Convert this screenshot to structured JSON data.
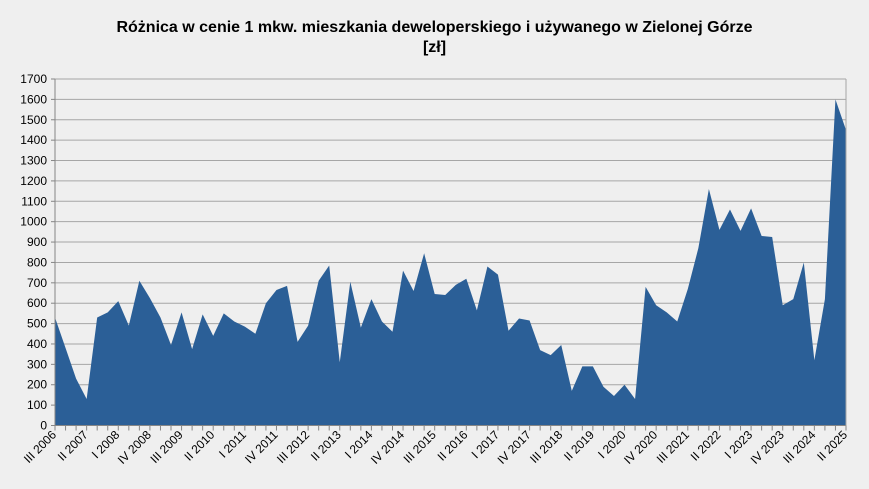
{
  "chart_data": {
    "type": "area",
    "title": "Różnica w cenie 1 mkw. mieszkania deweloperskiego i używanego w Zielonej Górze",
    "subtitle": "[zł]",
    "xlabel": "",
    "ylabel": "",
    "ylim": [
      0,
      1700
    ],
    "yticks": [
      0,
      100,
      200,
      300,
      400,
      500,
      600,
      700,
      800,
      900,
      1000,
      1100,
      1200,
      1300,
      1400,
      1500,
      1600,
      1700
    ],
    "grid": true,
    "legend": null,
    "fill_color": "#2b5f97",
    "x": [
      "III 2006",
      "IV 2006",
      "I 2007",
      "II 2007",
      "III 2007",
      "IV 2007",
      "I 2008",
      "II 2008",
      "III 2008",
      "IV 2008",
      "I 2009",
      "II 2009",
      "III 2009",
      "IV 2009",
      "I 2010",
      "II 2010",
      "III 2010",
      "IV 2010",
      "I 2011",
      "II 2011",
      "III 2011",
      "IV 2011",
      "I 2012",
      "II 2012",
      "III 2012",
      "IV 2012",
      "I 2013",
      "II 2013",
      "III 2013",
      "IV 2013",
      "I 2014",
      "II 2014",
      "III 2014",
      "IV 2014",
      "I 2015",
      "II 2015",
      "III 2015",
      "IV 2015",
      "I 2016",
      "II 2016",
      "III 2016",
      "IV 2016",
      "I 2017",
      "II 2017",
      "III 2017",
      "IV 2017",
      "I 2018",
      "II 2018",
      "III 2018",
      "IV 2018",
      "I 2019",
      "II 2019",
      "III 2019",
      "IV 2019",
      "I 2020",
      "II 2020",
      "III 2020",
      "IV 2020",
      "I 2021",
      "II 2021",
      "III 2021",
      "IV 2021",
      "I 2022",
      "II 2022",
      "III 2022",
      "IV 2022",
      "I 2023",
      "II 2023",
      "III 2023",
      "IV 2023",
      "I 2024",
      "II 2024",
      "III 2024",
      "IV 2024",
      "I 2025",
      "II 2025"
    ],
    "x_tick_labels_shown": [
      "III 2006",
      "II 2007",
      "I 2008",
      "IV 2008",
      "III 2009",
      "II 2010",
      "I 2011",
      "IV 2011",
      "III 2012",
      "II 2013",
      "I 2014",
      "IV 2014",
      "III 2015",
      "II 2016",
      "I 2017",
      "IV 2017",
      "III 2018",
      "II 2019",
      "I 2020",
      "IV 2020",
      "III 2021",
      "II 2022",
      "I 2023",
      "IV 2023",
      "III 2024",
      "II 2025"
    ],
    "series": [
      {
        "name": "Różnica [zł]",
        "values": [
          530,
          380,
          230,
          130,
          530,
          555,
          610,
          490,
          710,
          625,
          530,
          395,
          555,
          375,
          545,
          440,
          550,
          510,
          485,
          450,
          600,
          665,
          685,
          410,
          490,
          710,
          785,
          310,
          705,
          480,
          620,
          510,
          460,
          760,
          660,
          845,
          645,
          640,
          690,
          720,
          565,
          780,
          740,
          465,
          525,
          515,
          370,
          345,
          395,
          170,
          290,
          290,
          190,
          145,
          200,
          130,
          680,
          590,
          555,
          510,
          670,
          870,
          1160,
          960,
          1060,
          955,
          1065,
          930,
          925,
          590,
          620,
          800,
          320,
          620,
          1600,
          1450
        ]
      }
    ]
  }
}
